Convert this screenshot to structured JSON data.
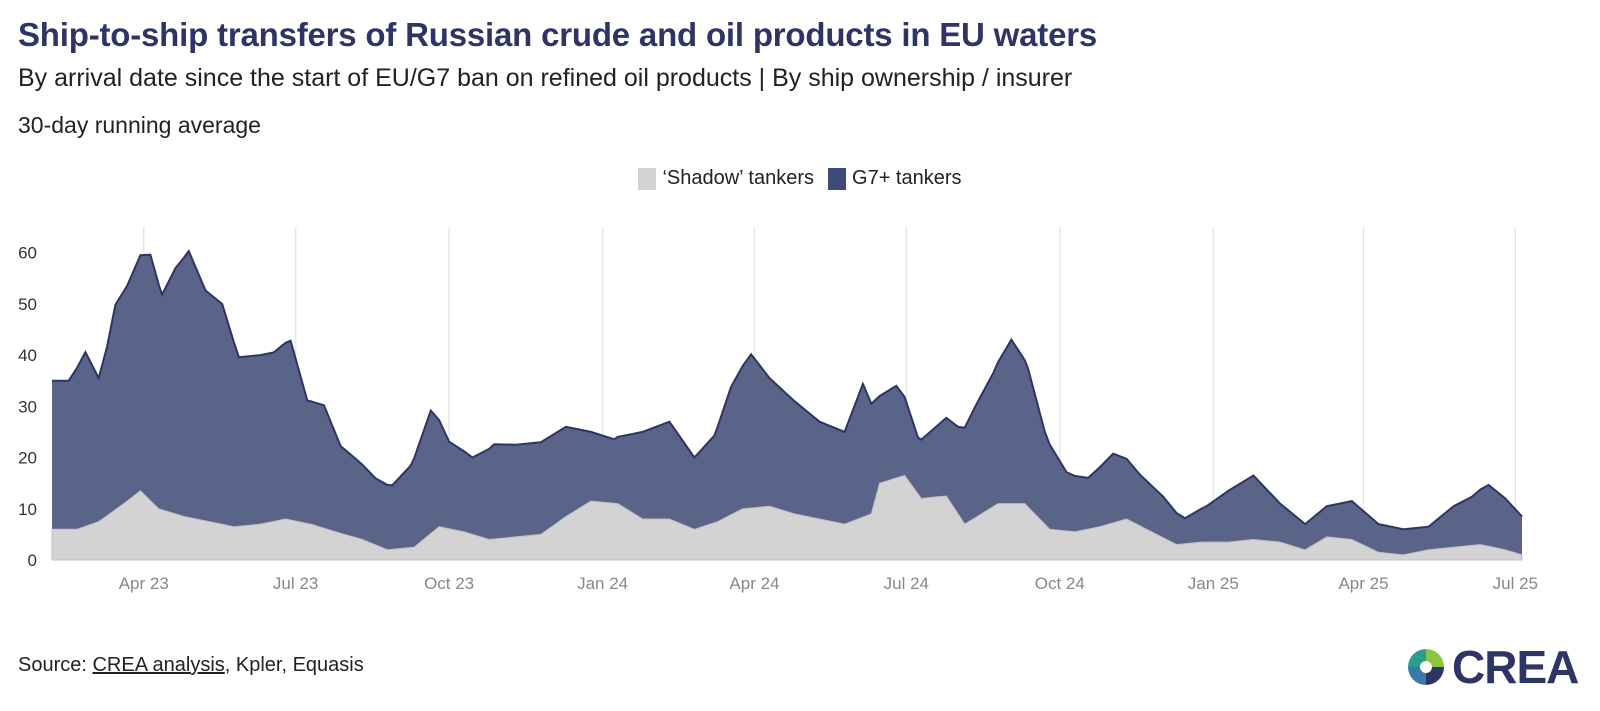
{
  "header": {
    "title": "Ship-to-ship transfers of Russian crude and oil products in EU waters",
    "subtitle": "By arrival date since the start of EU/G7 ban on refined oil products | By ship ownership / insurer",
    "note": "30-day running average"
  },
  "legend": [
    {
      "label": "‘Shadow’ tankers",
      "color": "#d3d3d3"
    },
    {
      "label": "G7+ tankers",
      "color": "#3d4a7a"
    }
  ],
  "footer": {
    "source_prefix": "Source: ",
    "source_link": "CREA analysis",
    "source_rest": ", Kpler, Equasis",
    "logo_text": "CREA"
  },
  "colors": {
    "g7": "#5a6388",
    "g7_line": "#2d3566",
    "shadow": "#d3d3d3",
    "shadow_line": "#bfbfbf",
    "grid": "#e6e6e6"
  },
  "chart_data": {
    "type": "area",
    "stacked": true,
    "x_unit": "date",
    "ylim": [
      0,
      65
    ],
    "yticks": [
      0,
      10,
      20,
      30,
      40,
      50,
      60
    ],
    "xticks": [
      {
        "label": "Apr 23",
        "date": "2023-04-01"
      },
      {
        "label": "Jul 23",
        "date": "2023-07-01"
      },
      {
        "label": "Oct 23",
        "date": "2023-10-01"
      },
      {
        "label": "Jan 24",
        "date": "2024-01-01"
      },
      {
        "label": "Apr 24",
        "date": "2024-04-01"
      },
      {
        "label": "Jul 24",
        "date": "2024-07-01"
      },
      {
        "label": "Oct 24",
        "date": "2024-10-01"
      },
      {
        "label": "Jan 25",
        "date": "2025-01-01"
      },
      {
        "label": "Apr 25",
        "date": "2025-04-01"
      },
      {
        "label": "Jul 25",
        "date": "2025-07-01"
      }
    ],
    "series": [
      {
        "name": "‘Shadow’ tankers",
        "points": [
          [
            "2023-02-05",
            6
          ],
          [
            "2023-02-20",
            6
          ],
          [
            "2023-03-05",
            7.5
          ],
          [
            "2023-03-20",
            11
          ],
          [
            "2023-03-30",
            13.5
          ],
          [
            "2023-04-10",
            10
          ],
          [
            "2023-04-25",
            8.5
          ],
          [
            "2023-05-10",
            7.5
          ],
          [
            "2023-05-25",
            6.5
          ],
          [
            "2023-06-10",
            7
          ],
          [
            "2023-06-25",
            8
          ],
          [
            "2023-07-10",
            7
          ],
          [
            "2023-07-25",
            5.5
          ],
          [
            "2023-08-10",
            4
          ],
          [
            "2023-08-25",
            2
          ],
          [
            "2023-09-10",
            2.5
          ],
          [
            "2023-09-25",
            6.5
          ],
          [
            "2023-10-10",
            5.5
          ],
          [
            "2023-10-25",
            4
          ],
          [
            "2023-11-10",
            4.5
          ],
          [
            "2023-11-25",
            5
          ],
          [
            "2023-12-10",
            8.5
          ],
          [
            "2023-12-25",
            11.5
          ],
          [
            "2024-01-10",
            11
          ],
          [
            "2024-01-25",
            8
          ],
          [
            "2024-02-10",
            8
          ],
          [
            "2024-02-25",
            6
          ],
          [
            "2024-03-10",
            7.5
          ],
          [
            "2024-03-25",
            10
          ],
          [
            "2024-04-10",
            10.5
          ],
          [
            "2024-04-25",
            9
          ],
          [
            "2024-05-10",
            8
          ],
          [
            "2024-05-25",
            7
          ],
          [
            "2024-06-10",
            9
          ],
          [
            "2024-06-15",
            15
          ],
          [
            "2024-06-30",
            16.5
          ],
          [
            "2024-07-10",
            12
          ],
          [
            "2024-07-25",
            12.5
          ],
          [
            "2024-08-05",
            7
          ],
          [
            "2024-08-15",
            9
          ],
          [
            "2024-08-25",
            11
          ],
          [
            "2024-09-10",
            11
          ],
          [
            "2024-09-25",
            6
          ],
          [
            "2024-10-10",
            5.5
          ],
          [
            "2024-10-25",
            6.5
          ],
          [
            "2024-11-10",
            8
          ],
          [
            "2024-11-25",
            5.5
          ],
          [
            "2024-12-10",
            3
          ],
          [
            "2024-12-25",
            3.5
          ],
          [
            "2025-01-10",
            3.5
          ],
          [
            "2025-01-25",
            4
          ],
          [
            "2025-02-10",
            3.5
          ],
          [
            "2025-02-25",
            2
          ],
          [
            "2025-03-10",
            4.5
          ],
          [
            "2025-03-25",
            4
          ],
          [
            "2025-04-10",
            1.5
          ],
          [
            "2025-04-25",
            1
          ],
          [
            "2025-05-10",
            2
          ],
          [
            "2025-05-25",
            2.5
          ],
          [
            "2025-06-10",
            3
          ],
          [
            "2025-06-25",
            2
          ],
          [
            "2025-07-05",
            1
          ]
        ]
      },
      {
        "name": "G7+ tankers",
        "points": [
          [
            "2023-02-05",
            29
          ],
          [
            "2023-02-15",
            29
          ],
          [
            "2023-02-25",
            34
          ],
          [
            "2023-03-05",
            28
          ],
          [
            "2023-03-10",
            33
          ],
          [
            "2023-03-15",
            40
          ],
          [
            "2023-03-22",
            42
          ],
          [
            "2023-03-30",
            46
          ],
          [
            "2023-04-05",
            48
          ],
          [
            "2023-04-12",
            42
          ],
          [
            "2023-04-20",
            48
          ],
          [
            "2023-04-28",
            52
          ],
          [
            "2023-05-08",
            45
          ],
          [
            "2023-05-18",
            43
          ],
          [
            "2023-05-28",
            33
          ],
          [
            "2023-06-08",
            33
          ],
          [
            "2023-06-18",
            33
          ],
          [
            "2023-06-28",
            35
          ],
          [
            "2023-07-08",
            24
          ],
          [
            "2023-07-18",
            24
          ],
          [
            "2023-07-28",
            17
          ],
          [
            "2023-08-08",
            15
          ],
          [
            "2023-08-18",
            13
          ],
          [
            "2023-08-28",
            12.5
          ],
          [
            "2023-09-08",
            16
          ],
          [
            "2023-09-20",
            24
          ],
          [
            "2023-10-01",
            17
          ],
          [
            "2023-10-15",
            15
          ],
          [
            "2023-10-28",
            18.5
          ],
          [
            "2023-11-10",
            18
          ],
          [
            "2023-11-25",
            18
          ],
          [
            "2023-12-10",
            17.5
          ],
          [
            "2023-12-25",
            13.5
          ],
          [
            "2024-01-08",
            12.5
          ],
          [
            "2024-01-25",
            17
          ],
          [
            "2024-02-10",
            19
          ],
          [
            "2024-02-25",
            14
          ],
          [
            "2024-03-08",
            17
          ],
          [
            "2024-03-18",
            25
          ],
          [
            "2024-03-30",
            30
          ],
          [
            "2024-04-10",
            25
          ],
          [
            "2024-04-25",
            22
          ],
          [
            "2024-05-10",
            19
          ],
          [
            "2024-05-25",
            18
          ],
          [
            "2024-06-05",
            26
          ],
          [
            "2024-06-15",
            17
          ],
          [
            "2024-06-25",
            18
          ],
          [
            "2024-07-08",
            11
          ],
          [
            "2024-07-20",
            14
          ],
          [
            "2024-08-01",
            17
          ],
          [
            "2024-08-12",
            22
          ],
          [
            "2024-08-22",
            26
          ],
          [
            "2024-09-02",
            32
          ],
          [
            "2024-09-12",
            27
          ],
          [
            "2024-09-22",
            18
          ],
          [
            "2024-10-05",
            11.5
          ],
          [
            "2024-10-18",
            10
          ],
          [
            "2024-11-02",
            13.5
          ],
          [
            "2024-11-18",
            10
          ],
          [
            "2024-12-02",
            8
          ],
          [
            "2024-12-15",
            5
          ],
          [
            "2024-12-28",
            7
          ],
          [
            "2025-01-10",
            10
          ],
          [
            "2025-01-25",
            12.5
          ],
          [
            "2025-02-10",
            7.5
          ],
          [
            "2025-02-25",
            5
          ],
          [
            "2025-03-10",
            6
          ],
          [
            "2025-03-25",
            7.5
          ],
          [
            "2025-04-10",
            5.5
          ],
          [
            "2025-04-25",
            5
          ],
          [
            "2025-05-10",
            4.5
          ],
          [
            "2025-05-25",
            8
          ],
          [
            "2025-06-05",
            9.5
          ],
          [
            "2025-06-15",
            12
          ],
          [
            "2025-06-25",
            10
          ],
          [
            "2025-07-05",
            7.5
          ]
        ]
      }
    ]
  }
}
